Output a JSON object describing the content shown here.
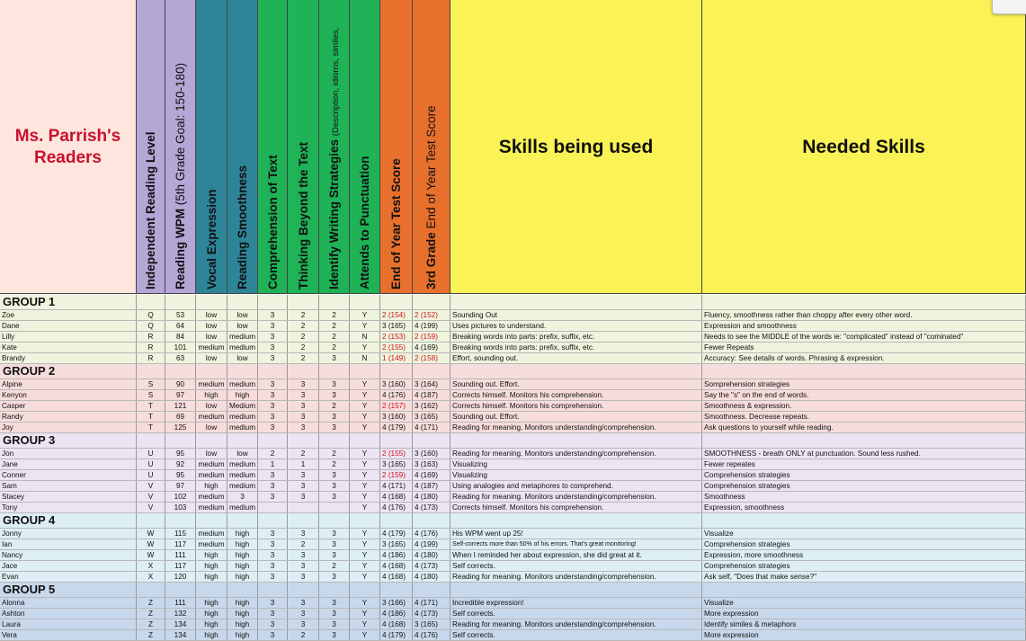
{
  "sheet": {
    "title": "Ms. Parrish's Readers",
    "colors": {
      "title_bg": "#fde6dd",
      "purple": "#b4a7d6",
      "teal": "#2f8598",
      "green": "#1fb257",
      "orange": "#e8702d",
      "yellow": "#fbf356",
      "title_red": "#c8102e"
    },
    "headers": [
      {
        "id": "level",
        "text": "Independent Reading Level"
      },
      {
        "id": "wpm",
        "text": "Reading WPM",
        "note": "(5th Grade Goal: 150-180)"
      },
      {
        "id": "vocal",
        "text": "Vocal Expression"
      },
      {
        "id": "smooth",
        "text": "Reading Smoothness"
      },
      {
        "id": "comp",
        "text": "Comprehension of Text"
      },
      {
        "id": "think",
        "text": "Thinking Beyond the Text"
      },
      {
        "id": "ident",
        "text": "Identify Writing Strategies",
        "note": "(Description, idioms, similes,"
      },
      {
        "id": "punct",
        "text": "Attends to Punctuation"
      },
      {
        "id": "eoy",
        "text": "End of Year Test Score"
      },
      {
        "id": "g3",
        "text": "3rd Grade",
        "note": "End of Year Test Score"
      },
      {
        "id": "skills",
        "text": "Skills being used"
      },
      {
        "id": "needed",
        "text": "Needed Skills"
      }
    ],
    "groups": [
      {
        "title": "GROUP 1",
        "bg": "#eef4dd",
        "students": [
          {
            "name": "Zoe",
            "level": "Q",
            "wpm": "53",
            "vocal": "low",
            "smooth": "low",
            "comp": "3",
            "think": "2",
            "ident": "2",
            "punct": "Y",
            "eoy": "2 (154)",
            "eoy_red": true,
            "g3": "2 (152)",
            "g3_red": true,
            "skills": "Sounding Out",
            "needed": "Fluency, smoothness rather than choppy after every other word."
          },
          {
            "name": "Dane",
            "level": "Q",
            "wpm": "64",
            "vocal": "low",
            "smooth": "low",
            "comp": "3",
            "think": "2",
            "ident": "2",
            "punct": "Y",
            "eoy": "3 (165)",
            "eoy_red": false,
            "g3": "4 (199)",
            "g3_red": false,
            "skills": "Uses pictures to understand.",
            "needed": "Expression and smoothness"
          },
          {
            "name": "Lilly",
            "level": "R",
            "wpm": "84",
            "vocal": "low",
            "smooth": "medium",
            "comp": "3",
            "think": "2",
            "ident": "2",
            "punct": "N",
            "eoy": "2 (153)",
            "eoy_red": true,
            "g3": "2 (159)",
            "g3_red": true,
            "skills": "Breaking words into parts: prefix, suffix, etc.",
            "needed": "Needs to see the MIDDLE of the words ie: \"complicated\" instead of \"cominated\""
          },
          {
            "name": "Kate",
            "level": "R",
            "wpm": "101",
            "vocal": "medium",
            "smooth": "medium",
            "comp": "3",
            "think": "2",
            "ident": "2",
            "punct": "Y",
            "eoy": "2 (155)",
            "eoy_red": true,
            "g3": "4 (169)",
            "g3_red": false,
            "skills": "Breaking words into parts: prefix, suffix, etc.",
            "needed": "Fewer Repeats"
          },
          {
            "name": "Brandy",
            "level": "R",
            "wpm": "63",
            "vocal": "low",
            "smooth": "low",
            "comp": "3",
            "think": "2",
            "ident": "3",
            "punct": "N",
            "eoy": "1 (149)",
            "eoy_red": true,
            "g3": "2 (158)",
            "g3_red": true,
            "skills": "Effort, sounding out.",
            "needed": "Accuracy: See details of words. Phrasing & expression."
          }
        ]
      },
      {
        "title": "GROUP 2",
        "bg": "#f7dcdc",
        "students": [
          {
            "name": "Alpine",
            "level": "S",
            "wpm": "90",
            "vocal": "medium",
            "smooth": "medium",
            "comp": "3",
            "think": "3",
            "ident": "3",
            "punct": "Y",
            "eoy": "3 (160)",
            "eoy_red": false,
            "g3": "3 (164)",
            "g3_red": false,
            "skills": "Sounding out. Effort.",
            "needed": "Somprehension strategies"
          },
          {
            "name": "Kenyon",
            "level": "S",
            "wpm": "97",
            "vocal": "high",
            "smooth": "high",
            "comp": "3",
            "think": "3",
            "ident": "3",
            "punct": "Y",
            "eoy": "4 (176)",
            "eoy_red": false,
            "g3": "4 (187)",
            "g3_red": false,
            "skills": "Corrects himself. Monitors his comprehension.",
            "needed": "Say the \"s\" on the end of words."
          },
          {
            "name": "Casper",
            "level": "T",
            "wpm": "121",
            "vocal": "low",
            "smooth": "Medium",
            "comp": "3",
            "think": "3",
            "ident": "2",
            "punct": "Y",
            "eoy": "2 (157)",
            "eoy_red": true,
            "g3": "3 (162)",
            "g3_red": false,
            "skills": "Corrects himself. Monitors his comprehension.",
            "needed": "Smoothness & expression."
          },
          {
            "name": "Randy",
            "level": "T",
            "wpm": "69",
            "vocal": "medium",
            "smooth": "medium",
            "comp": "3",
            "think": "3",
            "ident": "3",
            "punct": "Y",
            "eoy": "3 (160)",
            "eoy_red": false,
            "g3": "3 (165)",
            "g3_red": false,
            "skills": "Sounding out. Effort.",
            "needed": "Smoothness. Decrease repeats."
          },
          {
            "name": "Joy",
            "level": "T",
            "wpm": "125",
            "vocal": "low",
            "smooth": "medium",
            "comp": "3",
            "think": "3",
            "ident": "3",
            "punct": "Y",
            "eoy": "4 (179)",
            "eoy_red": false,
            "g3": "4 (171)",
            "g3_red": false,
            "skills": "Reading for meaning. Monitors understanding/comprehension.",
            "needed": "Ask questions to yourself while reading."
          }
        ]
      },
      {
        "title": "GROUP 3",
        "bg": "#ebe4f2",
        "students": [
          {
            "name": "Jon",
            "level": "U",
            "wpm": "95",
            "vocal": "low",
            "smooth": "low",
            "comp": "2",
            "think": "2",
            "ident": "2",
            "punct": "Y",
            "eoy": "2 (155)",
            "eoy_red": true,
            "g3": "3 (160)",
            "g3_red": false,
            "skills": "Reading for meaning. Monitors understanding/comprehension.",
            "needed": "SMOOTHNESS - breath ONLY at punctuation. Sound less rushed."
          },
          {
            "name": "Jane",
            "level": "U",
            "wpm": "92",
            "vocal": "medium",
            "smooth": "medium",
            "comp": "1",
            "think": "1",
            "ident": "2",
            "punct": "Y",
            "eoy": "3 (165)",
            "eoy_red": false,
            "g3": "3 (163)",
            "g3_red": false,
            "skills": "Visualizing",
            "needed": "Fewer repeates"
          },
          {
            "name": "Conner",
            "level": "U",
            "wpm": "95",
            "vocal": "medium",
            "smooth": "medium",
            "comp": "3",
            "think": "3",
            "ident": "3",
            "punct": "Y",
            "eoy": "2 (159)",
            "eoy_red": true,
            "g3": "4 (169)",
            "g3_red": false,
            "skills": "Visualizing",
            "needed": "Comprehension strategies"
          },
          {
            "name": "Sam",
            "level": "V",
            "wpm": "97",
            "vocal": "high",
            "smooth": "medium",
            "comp": "3",
            "think": "3",
            "ident": "3",
            "punct": "Y",
            "eoy": "4 (171)",
            "eoy_red": false,
            "g3": "4 (187)",
            "g3_red": false,
            "skills": "Using analogies and metaphores to comprehend.",
            "needed": "Comprehension strategies"
          },
          {
            "name": "Stacey",
            "level": "V",
            "wpm": "102",
            "vocal": "medium",
            "smooth": "3",
            "comp": "3",
            "think": "3",
            "ident": "3",
            "punct": "Y",
            "eoy": "4 (168)",
            "eoy_red": false,
            "g3": "4 (180)",
            "g3_red": false,
            "skills": "Reading for meaning. Monitors understanding/comprehension.",
            "needed": "Smoothness"
          },
          {
            "name": "Tony",
            "level": "V",
            "wpm": "103",
            "vocal": "medium",
            "smooth": "medium",
            "comp": "",
            "think": "",
            "ident": "",
            "punct": "Y",
            "eoy": "4 (176)",
            "eoy_red": false,
            "g3": "4 (173)",
            "g3_red": false,
            "skills": "Corrects himself. Monitors his comprehension.",
            "needed": "Expression, smoothness"
          }
        ]
      },
      {
        "title": "GROUP 4",
        "bg": "#ddeff5",
        "students": [
          {
            "name": "Jonny",
            "level": "W",
            "wpm": "115",
            "vocal": "medium",
            "smooth": "high",
            "comp": "3",
            "think": "3",
            "ident": "3",
            "punct": "Y",
            "eoy": "4 (179)",
            "eoy_red": false,
            "g3": "4 (176)",
            "g3_red": false,
            "skills": "His WPM went up 25!",
            "needed": "Visualize"
          },
          {
            "name": "Ian",
            "level": "W",
            "wpm": "117",
            "vocal": "medium",
            "smooth": "high",
            "comp": "3",
            "think": "2",
            "ident": "3",
            "punct": "Y",
            "eoy": "3 (165)",
            "eoy_red": false,
            "g3": "4 (199)",
            "g3_red": false,
            "skills": "Self-corrects more than 50% of his errors. That's great monitoring!",
            "needed": "Comprehension strategies"
          },
          {
            "name": "Nancy",
            "level": "W",
            "wpm": "111",
            "vocal": "high",
            "smooth": "high",
            "comp": "3",
            "think": "3",
            "ident": "3",
            "punct": "Y",
            "eoy": "4 (186)",
            "eoy_red": false,
            "g3": "4 (180)",
            "g3_red": false,
            "skills": "When I reminded her about expression, she did great at it.",
            "needed": "Expression, more smoothness"
          },
          {
            "name": "Jace",
            "level": "X",
            "wpm": "117",
            "vocal": "high",
            "smooth": "high",
            "comp": "3",
            "think": "3",
            "ident": "2",
            "punct": "Y",
            "eoy": "4 (168)",
            "eoy_red": false,
            "g3": "4 (173)",
            "g3_red": false,
            "skills": "Self corrects.",
            "needed": "Comprehension strategies"
          },
          {
            "name": "Evan",
            "level": "X",
            "wpm": "120",
            "vocal": "high",
            "smooth": "high",
            "comp": "3",
            "think": "3",
            "ident": "3",
            "punct": "Y",
            "eoy": "4 (168)",
            "eoy_red": false,
            "g3": "4 (180)",
            "g3_red": false,
            "skills": "Reading for meaning. Monitors understanding/comprehension.",
            "needed": "Ask self, \"Does that make sense?\""
          }
        ]
      },
      {
        "title": "GROUP 5",
        "bg": "#c8d8ec",
        "students": [
          {
            "name": "Alonna",
            "level": "Z",
            "wpm": "111",
            "vocal": "high",
            "smooth": "high",
            "comp": "3",
            "think": "3",
            "ident": "3",
            "punct": "Y",
            "eoy": "3 (166)",
            "eoy_red": false,
            "g3": "4 (171)",
            "g3_red": false,
            "skills": "Incredible expression!",
            "needed": "Visualize"
          },
          {
            "name": "Ashton",
            "level": "Z",
            "wpm": "132",
            "vocal": "high",
            "smooth": "high",
            "comp": "3",
            "think": "3",
            "ident": "3",
            "punct": "Y",
            "eoy": "4 (186)",
            "eoy_red": false,
            "g3": "4 (173)",
            "g3_red": false,
            "skills": "Self corrects.",
            "needed": "More expression"
          },
          {
            "name": "Laura",
            "level": "Z",
            "wpm": "134",
            "vocal": "high",
            "smooth": "high",
            "comp": "3",
            "think": "3",
            "ident": "3",
            "punct": "Y",
            "eoy": "4 (168)",
            "eoy_red": false,
            "g3": "3 (165)",
            "g3_red": false,
            "skills": "Reading for meaning. Monitors understanding/comprehension.",
            "needed": "Identify similes & metaphors"
          },
          {
            "name": "Vera",
            "level": "Z",
            "wpm": "134",
            "vocal": "high",
            "smooth": "high",
            "comp": "3",
            "think": "2",
            "ident": "3",
            "punct": "Y",
            "eoy": "4 (179)",
            "eoy_red": false,
            "g3": "4 (176)",
            "g3_red": false,
            "skills": "Self corrects.",
            "needed": "More expression"
          }
        ]
      }
    ]
  }
}
